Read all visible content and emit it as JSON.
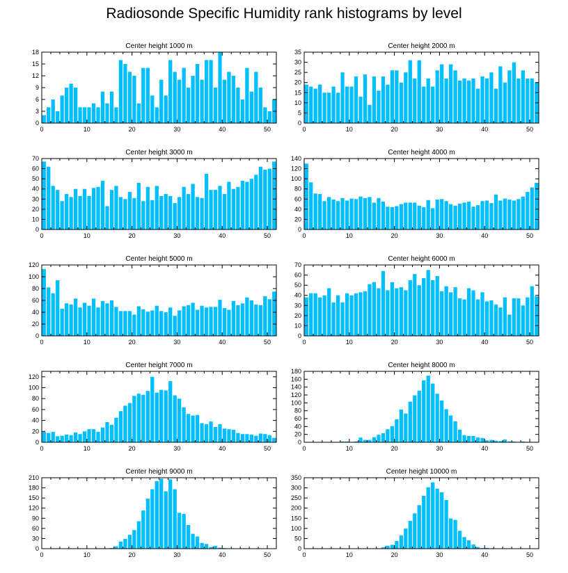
{
  "title": "Radiosonde Specific Humidity rank histograms by level",
  "bar_color": "#00bfff",
  "chart_data": [
    {
      "type": "bar",
      "title": "Center height 1000 m",
      "xlim": [
        0,
        52
      ],
      "xticks": [
        0,
        10,
        20,
        30,
        40,
        50
      ],
      "ylim": [
        0,
        18
      ],
      "yticks": [
        0,
        3,
        6,
        9,
        12,
        15,
        18
      ],
      "values": [
        2,
        4,
        6,
        3,
        7,
        9,
        10,
        9,
        4,
        4,
        4,
        5,
        4,
        8,
        5,
        8,
        4,
        16,
        15,
        13,
        12,
        5,
        14,
        14,
        7,
        4,
        11,
        7,
        16,
        13,
        11,
        14,
        9,
        12,
        15,
        11,
        16,
        16,
        9,
        18,
        11,
        13,
        12,
        9,
        6,
        14,
        8,
        13,
        9,
        4,
        3,
        6
      ]
    },
    {
      "type": "bar",
      "title": "Center height 2000 m",
      "xlim": [
        0,
        52
      ],
      "xticks": [
        0,
        10,
        20,
        30,
        40,
        50
      ],
      "ylim": [
        0,
        35
      ],
      "yticks": [
        0,
        5,
        10,
        15,
        20,
        25,
        30,
        35
      ],
      "values": [
        19,
        18,
        17,
        19,
        15,
        15,
        18,
        15,
        25,
        18,
        18,
        23,
        13,
        24,
        9,
        23,
        16,
        23,
        19,
        26,
        26,
        20,
        25,
        31,
        22,
        31,
        18,
        22,
        18,
        26,
        29,
        22,
        29,
        26,
        21,
        22,
        21,
        22,
        17,
        23,
        22,
        25,
        17,
        28,
        20,
        26,
        30,
        22,
        26,
        22,
        22,
        20
      ]
    },
    {
      "type": "bar",
      "title": "Center height 3000 m",
      "xlim": [
        0,
        52
      ],
      "xticks": [
        0,
        10,
        20,
        30,
        40,
        50
      ],
      "ylim": [
        0,
        70
      ],
      "yticks": [
        0,
        10,
        20,
        30,
        40,
        50,
        60,
        70
      ],
      "values": [
        67,
        62,
        43,
        39,
        28,
        35,
        32,
        40,
        33,
        40,
        33,
        41,
        42,
        48,
        23,
        39,
        43,
        32,
        30,
        37,
        31,
        46,
        28,
        42,
        29,
        43,
        33,
        35,
        33,
        26,
        32,
        42,
        35,
        45,
        32,
        31,
        55,
        39,
        39,
        43,
        35,
        47,
        40,
        42,
        48,
        47,
        50,
        54,
        62,
        59,
        60,
        67
      ]
    },
    {
      "type": "bar",
      "title": "Center height 4000 m",
      "xlim": [
        0,
        52
      ],
      "xticks": [
        0,
        10,
        20,
        30,
        40,
        50
      ],
      "ylim": [
        0,
        140
      ],
      "yticks": [
        0,
        20,
        40,
        60,
        80,
        100,
        120,
        140
      ],
      "values": [
        130,
        93,
        71,
        70,
        56,
        64,
        59,
        56,
        62,
        57,
        61,
        60,
        65,
        62,
        64,
        53,
        62,
        55,
        45,
        44,
        46,
        50,
        53,
        53,
        53,
        47,
        44,
        58,
        42,
        59,
        60,
        56,
        50,
        47,
        51,
        53,
        55,
        45,
        48,
        56,
        57,
        52,
        69,
        57,
        61,
        59,
        57,
        60,
        65,
        74,
        83,
        92
      ]
    },
    {
      "type": "bar",
      "title": "Center height 5000 m",
      "xlim": [
        0,
        52
      ],
      "xticks": [
        0,
        10,
        20,
        30,
        40,
        50
      ],
      "ylim": [
        0,
        120
      ],
      "yticks": [
        0,
        20,
        40,
        60,
        80,
        100,
        120
      ],
      "values": [
        113,
        82,
        72,
        94,
        46,
        55,
        53,
        63,
        48,
        56,
        51,
        63,
        48,
        59,
        55,
        60,
        49,
        42,
        42,
        42,
        36,
        50,
        45,
        41,
        43,
        51,
        42,
        40,
        48,
        34,
        43,
        50,
        52,
        56,
        44,
        51,
        48,
        49,
        49,
        61,
        47,
        44,
        59,
        52,
        55,
        65,
        60,
        53,
        52,
        67,
        62,
        75
      ]
    },
    {
      "type": "bar",
      "title": "Center height 6000 m",
      "xlim": [
        0,
        52
      ],
      "xticks": [
        0,
        10,
        20,
        30,
        40,
        50
      ],
      "ylim": [
        0,
        70
      ],
      "yticks": [
        0,
        10,
        20,
        30,
        40,
        50,
        60,
        70
      ],
      "values": [
        38,
        42,
        42,
        38,
        40,
        47,
        33,
        40,
        33,
        42,
        40,
        42,
        43,
        44,
        51,
        53,
        47,
        64,
        45,
        53,
        47,
        48,
        45,
        55,
        61,
        50,
        57,
        65,
        55,
        59,
        44,
        49,
        43,
        48,
        37,
        36,
        47,
        45,
        36,
        43,
        34,
        35,
        31,
        28,
        38,
        21,
        37,
        37,
        30,
        38,
        49,
        39
      ]
    },
    {
      "type": "bar",
      "title": "Center height 7000 m",
      "xlim": [
        0,
        52
      ],
      "xticks": [
        0,
        10,
        20,
        30,
        40,
        50
      ],
      "ylim": [
        0,
        130
      ],
      "yticks": [
        0,
        20,
        40,
        60,
        80,
        100,
        120
      ],
      "values": [
        19,
        17,
        19,
        11,
        12,
        14,
        13,
        18,
        15,
        20,
        24,
        24,
        19,
        27,
        37,
        32,
        45,
        57,
        67,
        72,
        85,
        89,
        87,
        94,
        120,
        91,
        96,
        95,
        112,
        86,
        80,
        64,
        52,
        49,
        50,
        35,
        33,
        38,
        28,
        33,
        25,
        24,
        23,
        17,
        15,
        15,
        14,
        12,
        16,
        15,
        13,
        8
      ]
    },
    {
      "type": "bar",
      "title": "Center height 8000 m",
      "xlim": [
        0,
        52
      ],
      "xticks": [
        0,
        10,
        20,
        30,
        40,
        50
      ],
      "ylim": [
        0,
        180
      ],
      "yticks": [
        0,
        20,
        40,
        60,
        80,
        100,
        120,
        140,
        160,
        180
      ],
      "values": [
        1,
        1,
        0,
        0,
        1,
        0,
        1,
        1,
        2,
        2,
        1,
        2,
        12,
        6,
        6,
        13,
        19,
        23,
        33,
        41,
        58,
        83,
        73,
        103,
        119,
        131,
        157,
        169,
        149,
        123,
        106,
        84,
        68,
        53,
        32,
        18,
        16,
        16,
        12,
        11,
        5,
        6,
        4,
        3,
        7,
        2,
        2,
        1,
        2,
        1,
        1,
        1
      ]
    },
    {
      "type": "bar",
      "title": "Center height 9000 m",
      "xlim": [
        0,
        52
      ],
      "xticks": [
        0,
        10,
        20,
        30,
        40,
        50
      ],
      "ylim": [
        0,
        210
      ],
      "yticks": [
        0,
        30,
        60,
        90,
        120,
        150,
        180,
        210
      ],
      "values": [
        0,
        0,
        0,
        0,
        0,
        0,
        0,
        0,
        0,
        0,
        0,
        0,
        0,
        0,
        0,
        2,
        7,
        21,
        29,
        41,
        55,
        81,
        113,
        148,
        176,
        200,
        207,
        170,
        205,
        176,
        106,
        103,
        70,
        44,
        36,
        17,
        14,
        5,
        8,
        3,
        2,
        1,
        0,
        1,
        0,
        0,
        0,
        0,
        0,
        0,
        0,
        0
      ]
    },
    {
      "type": "bar",
      "title": "Center height 10000 m",
      "xlim": [
        0,
        52
      ],
      "xticks": [
        0,
        10,
        20,
        30,
        40,
        50
      ],
      "ylim": [
        0,
        350
      ],
      "yticks": [
        0,
        50,
        100,
        150,
        200,
        250,
        300,
        350
      ],
      "values": [
        0,
        0,
        0,
        0,
        0,
        0,
        0,
        0,
        0,
        0,
        0,
        0,
        0,
        0,
        0,
        0,
        0,
        7,
        14,
        19,
        38,
        65,
        99,
        137,
        174,
        215,
        261,
        303,
        327,
        296,
        278,
        240,
        149,
        142,
        88,
        57,
        41,
        21,
        8,
        3,
        4,
        1,
        0,
        0,
        0,
        0,
        0,
        0,
        0,
        0,
        0,
        0
      ]
    }
  ]
}
